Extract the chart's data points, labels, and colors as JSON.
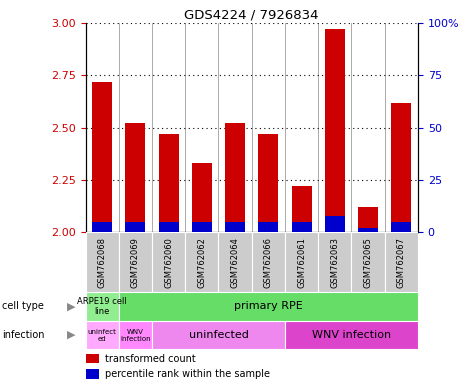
{
  "title": "GDS4224 / 7926834",
  "samples": [
    "GSM762068",
    "GSM762069",
    "GSM762060",
    "GSM762062",
    "GSM762064",
    "GSM762066",
    "GSM762061",
    "GSM762063",
    "GSM762065",
    "GSM762067"
  ],
  "transformed_count": [
    2.72,
    2.52,
    2.47,
    2.33,
    2.52,
    2.47,
    2.22,
    2.97,
    2.12,
    2.62
  ],
  "percentile_rank": [
    5,
    5,
    5,
    5,
    5,
    5,
    5,
    8,
    2,
    5
  ],
  "ylim_left": [
    2.0,
    3.0
  ],
  "ylim_right": [
    0,
    100
  ],
  "yticks_left": [
    2.0,
    2.25,
    2.5,
    2.75,
    3.0
  ],
  "yticks_right": [
    0,
    25,
    50,
    75,
    100
  ],
  "bar_color_red": "#cc0000",
  "bar_color_blue": "#0000cc",
  "bar_width": 0.6,
  "cell_type_arpe_color": "#90EE90",
  "cell_type_rpe_color": "#66DD66",
  "infection_col0_color": "#ffaaff",
  "infection_col1_color": "#ff88ff",
  "infection_uninfected_color": "#ee88ee",
  "infection_wnv_color": "#dd44cc",
  "sample_bg_color": "#cccccc",
  "legend_items": [
    {
      "label": "transformed count",
      "color": "#cc0000"
    },
    {
      "label": "percentile rank within the sample",
      "color": "#0000cc"
    }
  ],
  "tick_label_color_left": "#cc0000",
  "tick_label_color_right": "#0000cc"
}
